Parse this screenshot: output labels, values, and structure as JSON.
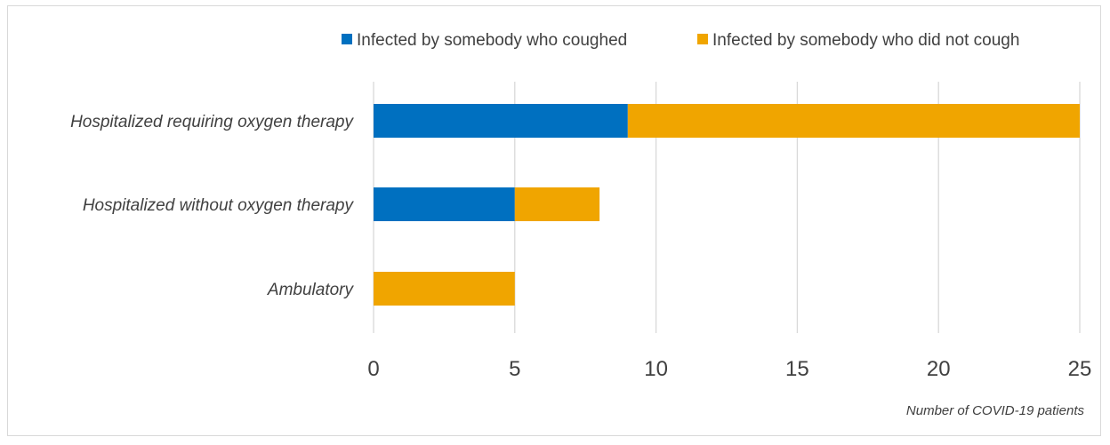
{
  "chart_data": {
    "type": "bar",
    "orientation": "horizontal",
    "stacked": true,
    "categories": [
      "Hospitalized requiring oxygen therapy",
      "Hospitalized without oxygen therapy",
      "Ambulatory"
    ],
    "series": [
      {
        "name": "Infected by somebody who coughed",
        "values": [
          9,
          5,
          0
        ],
        "color": "#0070c0"
      },
      {
        "name": "Infected by somebody who did not cough",
        "values": [
          16,
          3,
          5
        ],
        "color": "#f0a500"
      }
    ],
    "xlim": [
      0,
      25
    ],
    "xticks": [
      "0",
      "5",
      "10",
      "15",
      "20",
      "25"
    ],
    "xlabel": "Number of COVID-19 patients",
    "grid": "vertical",
    "legend_position": "top-right"
  }
}
